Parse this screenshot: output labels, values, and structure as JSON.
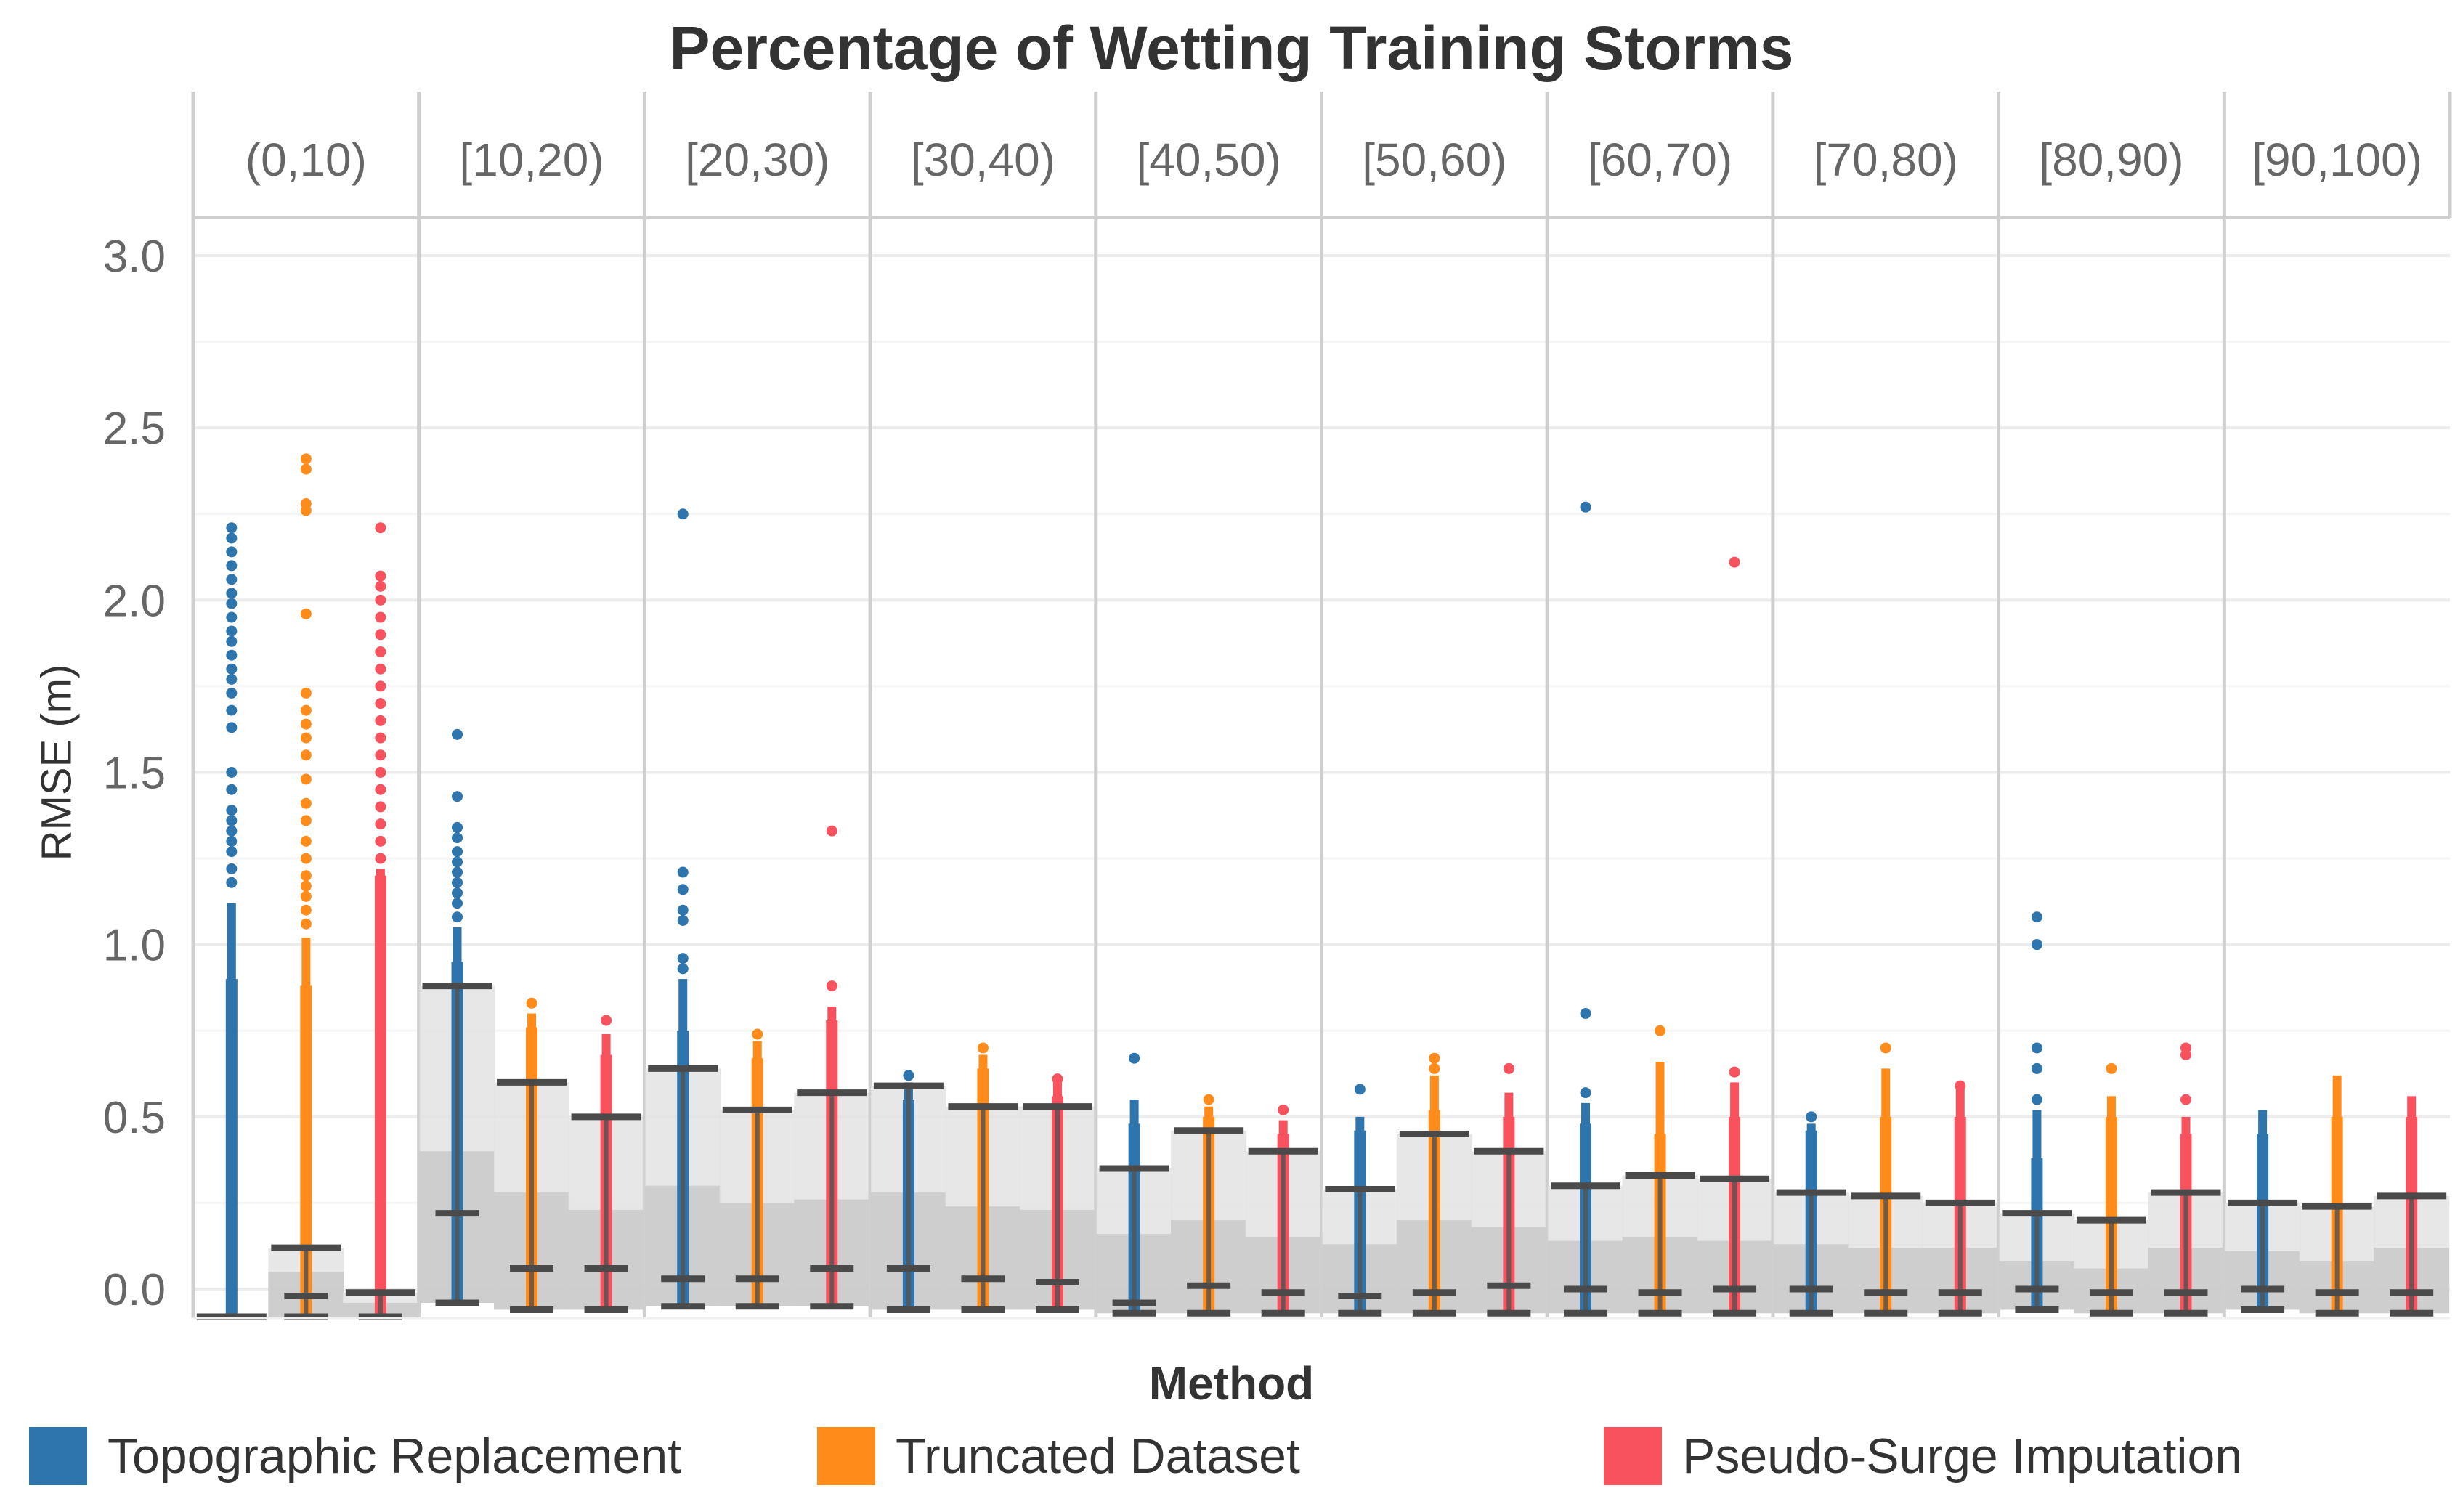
{
  "chart_data": {
    "type": "boxplot",
    "title": "Percentage of Wetting Training Storms",
    "ylabel": "RMSE (m)",
    "legend_title": "Method",
    "ylim": [
      -0.08,
      3.05
    ],
    "yticks": [
      {
        "value": 3.0,
        "label": "3.0"
      },
      {
        "value": 2.5,
        "label": "2.5"
      },
      {
        "value": 2.0,
        "label": "2.0"
      },
      {
        "value": 1.5,
        "label": "1.5"
      },
      {
        "value": 1.0,
        "label": "1.0"
      },
      {
        "value": 0.5,
        "label": "0.5"
      },
      {
        "value": 0.0,
        "label": "0.0"
      }
    ],
    "facets": [
      "(0,10)",
      "[10,20)",
      "[20,30)",
      "[30,40)",
      "[40,50)",
      "[50,60)",
      "[60,70)",
      "[70,80)",
      "[80,90)",
      "[90,100)"
    ],
    "series": [
      {
        "name": "Topographic Replacement",
        "color": "#2e75ad"
      },
      {
        "name": "Truncated Dataset",
        "color": "#ff8c1a"
      },
      {
        "name": "Pseudo-Surge Imputation",
        "color": "#f8525e"
      }
    ],
    "boxes": [
      [
        {
          "min": -0.08,
          "q1": -0.08,
          "median": -0.08,
          "q3": -0.08,
          "max": -0.08,
          "whisker_top": 1.12,
          "solid_top": 0.9,
          "outliers": [
            1.18,
            1.22,
            1.27,
            1.3,
            1.33,
            1.36,
            1.39,
            1.45,
            1.5,
            1.63,
            1.68,
            1.73,
            1.77,
            1.8,
            1.84,
            1.88,
            1.91,
            1.95,
            1.99,
            2.02,
            2.06,
            2.1,
            2.14,
            2.18,
            2.21
          ]
        },
        {
          "min": -0.08,
          "q1": -0.02,
          "median": 0.05,
          "q3": 0.12,
          "max": 0.12,
          "whisker_top": 1.02,
          "solid_top": 0.88,
          "outliers": [
            1.06,
            1.1,
            1.14,
            1.17,
            1.2,
            1.25,
            1.3,
            1.36,
            1.41,
            1.48,
            1.55,
            1.6,
            1.64,
            1.68,
            1.73,
            1.96,
            2.26,
            2.28,
            2.38,
            2.41
          ]
        },
        {
          "min": -0.08,
          "q1": -0.08,
          "median": -0.04,
          "q3": -0.01,
          "max": -0.01,
          "whisker_top": 1.22,
          "solid_top": 1.2,
          "outliers": [
            1.25,
            1.3,
            1.35,
            1.4,
            1.45,
            1.5,
            1.55,
            1.6,
            1.65,
            1.7,
            1.75,
            1.8,
            1.85,
            1.9,
            1.95,
            2.0,
            2.04,
            2.07,
            2.21
          ]
        }
      ],
      [
        {
          "min": -0.04,
          "q1": 0.22,
          "median": 0.4,
          "q3": 0.88,
          "max": 0.88,
          "whisker_top": 1.05,
          "solid_top": 0.95,
          "outliers": [
            1.08,
            1.12,
            1.15,
            1.18,
            1.21,
            1.24,
            1.27,
            1.31,
            1.34,
            1.43,
            1.61
          ]
        },
        {
          "min": -0.06,
          "q1": 0.06,
          "median": 0.28,
          "q3": 0.6,
          "max": 0.6,
          "whisker_top": 0.8,
          "solid_top": 0.76,
          "outliers": [
            0.83
          ]
        },
        {
          "min": -0.06,
          "q1": 0.06,
          "median": 0.23,
          "q3": 0.5,
          "max": 0.5,
          "whisker_top": 0.74,
          "solid_top": 0.68,
          "outliers": [
            0.78
          ]
        }
      ],
      [
        {
          "min": -0.05,
          "q1": 0.03,
          "median": 0.3,
          "q3": 0.64,
          "max": 0.64,
          "whisker_top": 0.9,
          "solid_top": 0.75,
          "outliers": [
            0.93,
            0.96,
            1.07,
            1.1,
            1.16,
            1.21,
            2.25
          ]
        },
        {
          "min": -0.05,
          "q1": 0.03,
          "median": 0.25,
          "q3": 0.52,
          "max": 0.52,
          "whisker_top": 0.72,
          "solid_top": 0.67,
          "outliers": [
            0.74
          ]
        },
        {
          "min": -0.05,
          "q1": 0.06,
          "median": 0.26,
          "q3": 0.57,
          "max": 0.57,
          "whisker_top": 0.82,
          "solid_top": 0.78,
          "outliers": [
            0.88,
            1.33
          ]
        }
      ],
      [
        {
          "min": -0.06,
          "q1": 0.06,
          "median": 0.28,
          "q3": 0.59,
          "max": 0.59,
          "whisker_top": 0.6,
          "solid_top": 0.55,
          "outliers": [
            0.62
          ]
        },
        {
          "min": -0.06,
          "q1": 0.03,
          "median": 0.24,
          "q3": 0.53,
          "max": 0.53,
          "whisker_top": 0.68,
          "solid_top": 0.64,
          "outliers": [
            0.7
          ]
        },
        {
          "min": -0.06,
          "q1": 0.02,
          "median": 0.23,
          "q3": 0.53,
          "max": 0.53,
          "whisker_top": 0.6,
          "solid_top": 0.56,
          "outliers": [
            0.61
          ]
        }
      ],
      [
        {
          "min": -0.07,
          "q1": -0.04,
          "median": 0.16,
          "q3": 0.35,
          "max": 0.35,
          "whisker_top": 0.55,
          "solid_top": 0.48,
          "outliers": [
            0.67
          ]
        },
        {
          "min": -0.07,
          "q1": 0.01,
          "median": 0.2,
          "q3": 0.46,
          "max": 0.46,
          "whisker_top": 0.53,
          "solid_top": 0.5,
          "outliers": [
            0.55
          ]
        },
        {
          "min": -0.07,
          "q1": -0.01,
          "median": 0.15,
          "q3": 0.4,
          "max": 0.4,
          "whisker_top": 0.49,
          "solid_top": 0.45,
          "outliers": [
            0.52
          ]
        }
      ],
      [
        {
          "min": -0.07,
          "q1": -0.02,
          "median": 0.13,
          "q3": 0.29,
          "max": 0.29,
          "whisker_top": 0.5,
          "solid_top": 0.46,
          "outliers": [
            0.58
          ]
        },
        {
          "min": -0.07,
          "q1": -0.01,
          "median": 0.2,
          "q3": 0.45,
          "max": 0.45,
          "whisker_top": 0.62,
          "solid_top": 0.52,
          "outliers": [
            0.64,
            0.67
          ]
        },
        {
          "min": -0.07,
          "q1": 0.01,
          "median": 0.18,
          "q3": 0.4,
          "max": 0.4,
          "whisker_top": 0.57,
          "solid_top": 0.5,
          "outliers": [
            0.64
          ]
        }
      ],
      [
        {
          "min": -0.07,
          "q1": 0.0,
          "median": 0.14,
          "q3": 0.3,
          "max": 0.3,
          "whisker_top": 0.54,
          "solid_top": 0.48,
          "outliers": [
            0.57,
            0.8,
            2.27
          ]
        },
        {
          "min": -0.07,
          "q1": -0.01,
          "median": 0.15,
          "q3": 0.33,
          "max": 0.33,
          "whisker_top": 0.66,
          "solid_top": 0.45,
          "outliers": [
            0.75
          ]
        },
        {
          "min": -0.07,
          "q1": 0.0,
          "median": 0.14,
          "q3": 0.32,
          "max": 0.32,
          "whisker_top": 0.6,
          "solid_top": 0.5,
          "outliers": [
            0.63,
            2.11
          ]
        }
      ],
      [
        {
          "min": -0.07,
          "q1": 0.0,
          "median": 0.13,
          "q3": 0.28,
          "max": 0.28,
          "whisker_top": 0.48,
          "solid_top": 0.46,
          "outliers": [
            0.5
          ]
        },
        {
          "min": -0.07,
          "q1": -0.01,
          "median": 0.12,
          "q3": 0.27,
          "max": 0.27,
          "whisker_top": 0.64,
          "solid_top": 0.5,
          "outliers": [
            0.7
          ]
        },
        {
          "min": -0.07,
          "q1": -0.01,
          "median": 0.12,
          "q3": 0.25,
          "max": 0.25,
          "whisker_top": 0.58,
          "solid_top": 0.5,
          "outliers": [
            0.59
          ]
        }
      ],
      [
        {
          "min": -0.06,
          "q1": 0.0,
          "median": 0.08,
          "q3": 0.22,
          "max": 0.22,
          "whisker_top": 0.52,
          "solid_top": 0.38,
          "outliers": [
            0.55,
            0.64,
            0.7,
            1.0,
            1.08
          ]
        },
        {
          "min": -0.07,
          "q1": -0.01,
          "median": 0.06,
          "q3": 0.2,
          "max": 0.2,
          "whisker_top": 0.56,
          "solid_top": 0.5,
          "outliers": [
            0.64
          ]
        },
        {
          "min": -0.07,
          "q1": -0.01,
          "median": 0.12,
          "q3": 0.28,
          "max": 0.28,
          "whisker_top": 0.5,
          "solid_top": 0.45,
          "outliers": [
            0.55,
            0.68,
            0.7
          ]
        }
      ],
      [
        {
          "min": -0.06,
          "q1": 0.0,
          "median": 0.11,
          "q3": 0.25,
          "max": 0.25,
          "whisker_top": 0.52,
          "solid_top": 0.45,
          "outliers": []
        },
        {
          "min": -0.07,
          "q1": -0.01,
          "median": 0.08,
          "q3": 0.24,
          "max": 0.24,
          "whisker_top": 0.62,
          "solid_top": 0.5,
          "outliers": []
        },
        {
          "min": -0.07,
          "q1": -0.01,
          "median": 0.12,
          "q3": 0.27,
          "max": 0.27,
          "whisker_top": 0.56,
          "solid_top": 0.5,
          "outliers": []
        }
      ]
    ]
  }
}
